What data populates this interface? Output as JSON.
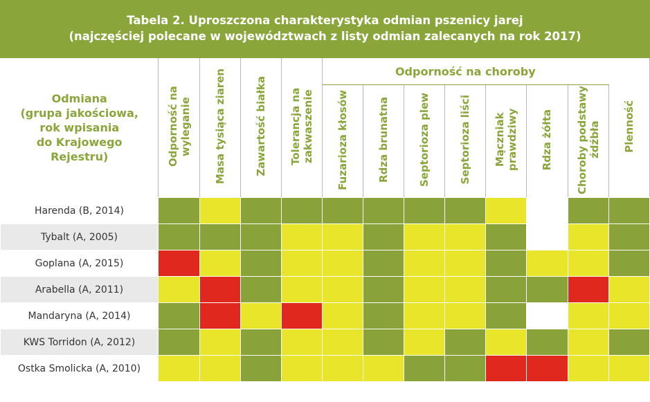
{
  "title": {
    "line1": "Tabela 2. Uproszczona charakterystyka odmian pszenicy jarej",
    "line2": "(najczęściej polecane w województwach z listy odmian zalecanych na rok 2017)"
  },
  "header": {
    "variety_lines": [
      "Odmiana",
      "(grupa jakościowa,",
      "rok wpisania",
      "do Krajowego",
      "Rejestru)"
    ],
    "disease_group": "Odporność na choroby",
    "columns": [
      "Odporność na wyleganie",
      "Masa tysiąca ziaren",
      "Zawartość białka",
      "Tolerancja na zakwaszenie",
      "Fuzarioza kłosów",
      "Rdza brunatna",
      "Septorioza plew",
      "Septorioza liści",
      "Mączniak prawdziwy",
      "Rdza żółta",
      "Choroby podstawy źdźbła",
      "Plenność"
    ]
  },
  "colors": {
    "green": "#89a33a",
    "yellow": "#e9e52a",
    "red": "#e0281e",
    "white": "#ffffff",
    "header_green": "#8aa53a"
  },
  "rows": [
    {
      "name": "Harenda (B, 2014)",
      "cells": [
        "green",
        "yellow",
        "green",
        "green",
        "green",
        "green",
        "green",
        "green",
        "yellow",
        "white",
        "green",
        "green"
      ]
    },
    {
      "name": "Tybalt (A, 2005)",
      "cells": [
        "green",
        "green",
        "green",
        "yellow",
        "yellow",
        "green",
        "yellow",
        "yellow",
        "green",
        "white",
        "yellow",
        "green"
      ]
    },
    {
      "name": "Goplana (A, 2015)",
      "cells": [
        "red",
        "yellow",
        "green",
        "yellow",
        "yellow",
        "green",
        "yellow",
        "yellow",
        "green",
        "yellow",
        "yellow",
        "green"
      ]
    },
    {
      "name": "Arabella (A, 2011)",
      "cells": [
        "yellow",
        "red",
        "green",
        "yellow",
        "yellow",
        "green",
        "yellow",
        "yellow",
        "green",
        "green",
        "red",
        "yellow"
      ]
    },
    {
      "name": "Mandaryna (A, 2014)",
      "cells": [
        "green",
        "red",
        "yellow",
        "red",
        "yellow",
        "green",
        "yellow",
        "yellow",
        "green",
        "white",
        "yellow",
        "yellow"
      ]
    },
    {
      "name": "KWS Torridon (A, 2012)",
      "cells": [
        "green",
        "yellow",
        "green",
        "yellow",
        "yellow",
        "green",
        "yellow",
        "green",
        "yellow",
        "green",
        "yellow",
        "green"
      ]
    },
    {
      "name": "Ostka Smolicka (A, 2010)",
      "cells": [
        "yellow",
        "yellow",
        "green",
        "yellow",
        "yellow",
        "yellow",
        "green",
        "green",
        "red",
        "red",
        "yellow",
        "yellow"
      ]
    }
  ]
}
